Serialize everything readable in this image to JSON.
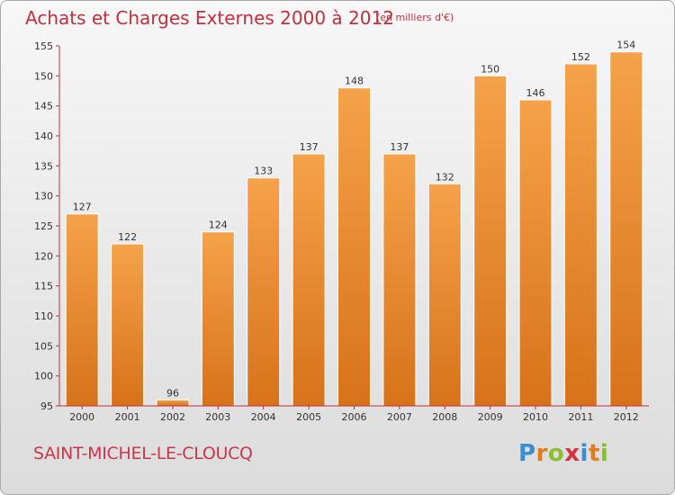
{
  "header": {
    "title": "Achats et Charges Externes 2000 à 2012",
    "subtitle": "(en milliers d'€)"
  },
  "footer": {
    "town": "SAINT-MICHEL-LE-CLOUCQ",
    "logo_text": "Proxiti",
    "logo_letters": [
      {
        "ch": "P",
        "color": "#3a8fd0"
      },
      {
        "ch": "r",
        "color": "#e07d1f"
      },
      {
        "ch": "o",
        "color": "#8bbf2d"
      },
      {
        "ch": "x",
        "color": "#d6333f"
      },
      {
        "ch": "i",
        "color": "#3a8fd0"
      },
      {
        "ch": "t",
        "color": "#e07d1f"
      },
      {
        "ch": "i",
        "color": "#8bbf2d"
      }
    ]
  },
  "colors": {
    "title": "#c0303e",
    "bar_light": "#f5a24a",
    "bar_dark": "#d7721a",
    "axis": "#c0303e"
  },
  "chart_data": {
    "type": "bar",
    "title": "Achats et Charges Externes 2000 à 2012",
    "subtitle": "(en milliers d'€)",
    "categories": [
      "2000",
      "2001",
      "2002",
      "2003",
      "2004",
      "2005",
      "2006",
      "2007",
      "2008",
      "2009",
      "2010",
      "2011",
      "2012"
    ],
    "values": [
      127,
      122,
      96,
      124,
      133,
      137,
      148,
      137,
      132,
      150,
      146,
      152,
      154
    ],
    "ylim": [
      95,
      155
    ],
    "yticks": [
      95,
      100,
      105,
      110,
      115,
      120,
      125,
      130,
      135,
      140,
      145,
      150,
      155
    ],
    "xlabel": "",
    "ylabel": "",
    "grid": false,
    "data_labels": true
  }
}
